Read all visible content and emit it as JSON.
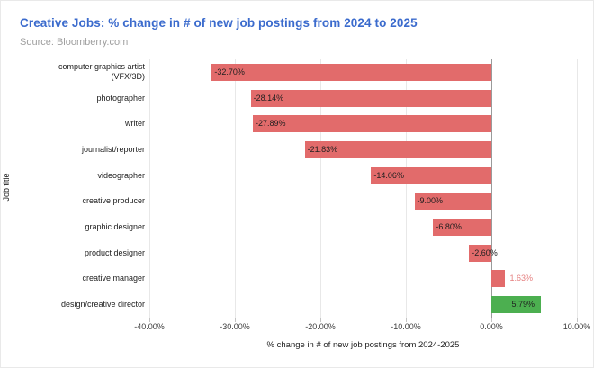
{
  "header": {
    "title": "Creative Jobs: % change in # of new job postings from 2024 to 2025",
    "subtitle": "Source: Bloomberry.com"
  },
  "chart_data": {
    "type": "bar",
    "orientation": "horizontal",
    "title": "Creative Jobs: % change in # of new job postings from 2024 to 2025",
    "source": "Source: Bloomberry.com",
    "categories": [
      "computer graphics artist (VFX/3D)",
      "photographer",
      "writer",
      "journalist/reporter",
      "videographer",
      "creative producer",
      "graphic designer",
      "product designer",
      "creative manager",
      "design/creative director"
    ],
    "values": [
      -32.7,
      -28.14,
      -27.89,
      -21.83,
      -14.06,
      -9.0,
      -6.8,
      -2.6,
      1.63,
      5.79
    ],
    "value_labels": [
      "-32.70%",
      "-28.14%",
      "-27.89%",
      "-21.83%",
      "-14.06%",
      "-9.00%",
      "-6.80%",
      "-2.60%",
      "1.63%",
      "5.79%"
    ],
    "bar_colors": [
      "#e26b6b",
      "#e26b6b",
      "#e26b6b",
      "#e26b6b",
      "#e26b6b",
      "#e26b6b",
      "#e26b6b",
      "#e26b6b",
      "#e26b6b",
      "#4caf50"
    ],
    "label_placement": [
      "inside-start",
      "inside-start",
      "inside-start",
      "inside-start",
      "inside-start",
      "inside-start",
      "inside-start",
      "inside-start",
      "outside-end",
      "inside-end"
    ],
    "label_colors": [
      "#1f1f1f",
      "#1f1f1f",
      "#1f1f1f",
      "#1f1f1f",
      "#1f1f1f",
      "#1f1f1f",
      "#1f1f1f",
      "#1f1f1f",
      "#e57f7f",
      "#1f1f1f"
    ],
    "xlabel": "% change in # of new job postings from 2024-2025",
    "ylabel": "Job title",
    "xlim": [
      -40,
      10
    ],
    "x_ticks": [
      "-40.00%",
      "-30.00%",
      "-20.00%",
      "-10.00%",
      "0.00%",
      "10.00%"
    ],
    "x_tick_values": [
      -40,
      -30,
      -20,
      -10,
      0,
      10
    ],
    "grid": true,
    "legend": "none",
    "colors": {
      "bar_negative": "#e26b6b",
      "bar_positive": "#4caf50",
      "title": "#3b6bcd",
      "subtitle": "#9e9e9e",
      "outside_label": "#e57f7f",
      "gridline": "#e8e8e8",
      "zero_line": "#9a9a9a"
    }
  }
}
